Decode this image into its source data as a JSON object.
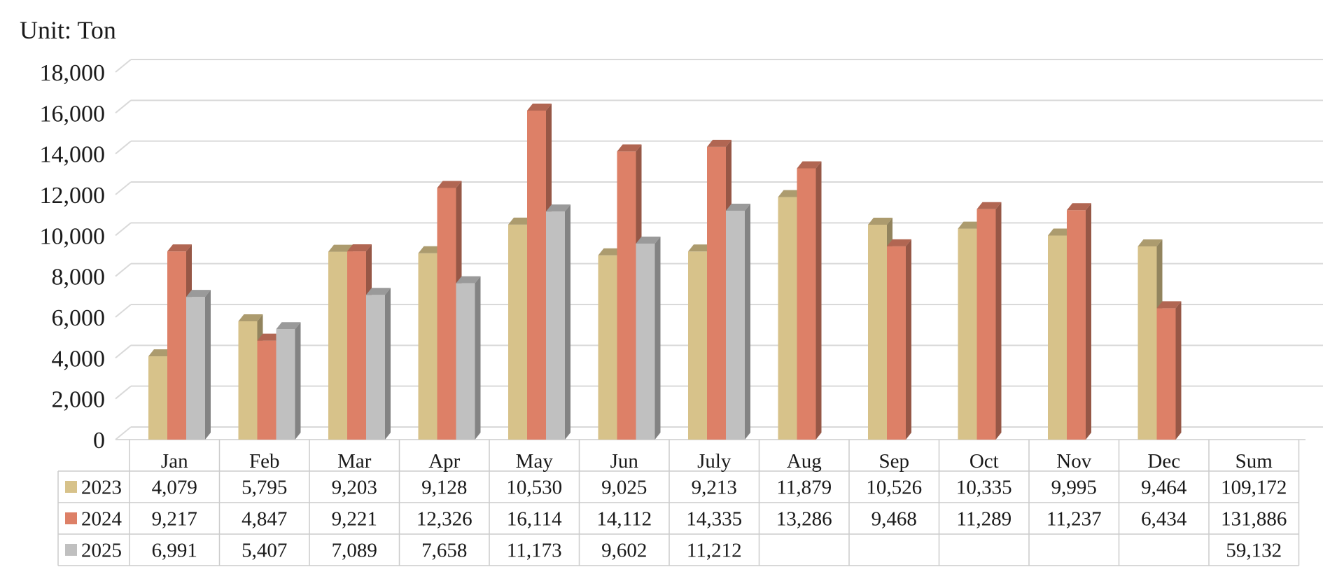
{
  "unit_label": "Unit: Ton",
  "colors": {
    "2023": "#d7c28a",
    "2024": "#dd8067",
    "2025": "#c0c0c0",
    "grid": "#d9d9d9",
    "table_border": "#cccccc"
  },
  "chart_data": {
    "type": "bar",
    "title": "",
    "ylim": [
      0,
      18000
    ],
    "yticks": [
      "0",
      "2,000",
      "4,000",
      "6,000",
      "8,000",
      "10,000",
      "12,000",
      "14,000",
      "16,000",
      "18,000"
    ],
    "categories": [
      "Jan",
      "Feb",
      "Mar",
      "Apr",
      "May",
      "Jun",
      "July",
      "Aug",
      "Sep",
      "Oct",
      "Nov",
      "Dec"
    ],
    "sum_label": "Sum",
    "grid": true,
    "legend": "data-table",
    "series": [
      {
        "name": "2023",
        "values": [
          4079,
          5795,
          9203,
          9128,
          10530,
          9025,
          9213,
          11879,
          10526,
          10335,
          9995,
          9464
        ],
        "labels": [
          "4,079",
          "5,795",
          "9,203",
          "9,128",
          "10,530",
          "9,025",
          "9,213",
          "11,879",
          "10,526",
          "10,335",
          "9,995",
          "9,464"
        ],
        "sum": "109,172"
      },
      {
        "name": "2024",
        "values": [
          9217,
          4847,
          9221,
          12326,
          16114,
          14112,
          14335,
          13286,
          9468,
          11289,
          11237,
          6434
        ],
        "labels": [
          "9,217",
          "4,847",
          "9,221",
          "12,326",
          "16,114",
          "14,112",
          "14,335",
          "13,286",
          "9,468",
          "11,289",
          "11,237",
          "6,434"
        ],
        "sum": "131,886"
      },
      {
        "name": "2025",
        "values": [
          6991,
          5407,
          7089,
          7658,
          11173,
          9602,
          11212,
          null,
          null,
          null,
          null,
          null
        ],
        "labels": [
          "6,991",
          "5,407",
          "7,089",
          "7,658",
          "11,173",
          "9,602",
          "11,212",
          "",
          "",
          "",
          "",
          ""
        ],
        "sum": "59,132"
      }
    ]
  }
}
